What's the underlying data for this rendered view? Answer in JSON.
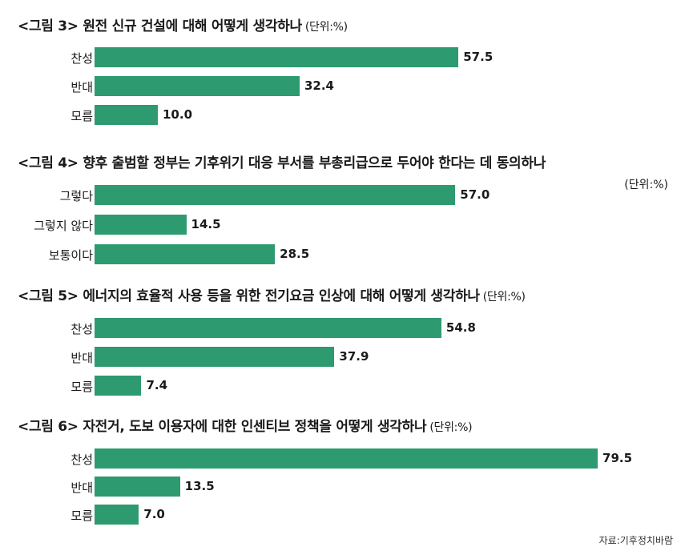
{
  "chart_data": [
    {
      "type": "bar",
      "title": "<그림 3> 원전 신규 건설에 대해 어떻게 생각하나",
      "unit": "(단위:%)",
      "categories": [
        "찬성",
        "반대",
        "모름"
      ],
      "values": [
        57.5,
        32.4,
        10.0
      ]
    },
    {
      "type": "bar",
      "title": "<그림 4> 향후 출범할 정부는 기후위기 대응 부서를 부총리급으로 두어야 한다는 데 동의하나",
      "unit": "(단위:%)",
      "categories": [
        "그렇다",
        "그렇지 않다",
        "보통이다"
      ],
      "values": [
        57.0,
        14.5,
        28.5
      ]
    },
    {
      "type": "bar",
      "title": "<그림 5> 에너지의 효율적 사용 등을 위한 전기요금 인상에 대해 어떻게 생각하나",
      "unit": "(단위:%)",
      "categories": [
        "찬성",
        "반대",
        "모름"
      ],
      "values": [
        54.8,
        37.9,
        7.4
      ]
    },
    {
      "type": "bar",
      "title": "<그림 6> 자전거, 도보 이용자에 대한 인센티브 정책을 어떻게 생각하나",
      "unit": "(단위:%)",
      "categories": [
        "찬성",
        "반대",
        "모름"
      ],
      "values": [
        79.5,
        13.5,
        7.0
      ]
    }
  ],
  "source": "자료:기후정치바람",
  "colors": {
    "bar": "#2e9a70"
  }
}
